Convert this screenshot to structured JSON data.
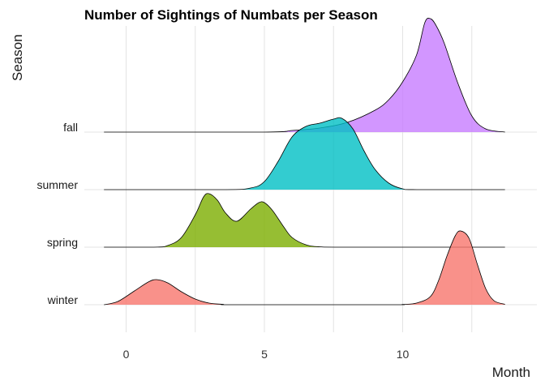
{
  "chart_data": {
    "type": "ridgeline",
    "title": "Number of Sightings of Numbats per Season",
    "xlabel": "Month",
    "ylabel": "Season",
    "xlim": [
      -1.5,
      14.5
    ],
    "xticks": [
      0,
      5,
      10
    ],
    "grid": true,
    "categories": [
      "winter",
      "spring",
      "summer",
      "fall"
    ],
    "series": [
      {
        "name": "winter",
        "color": "#F8766D",
        "x": [
          -0.8,
          -0.3,
          0.3,
          0.8,
          1.1,
          1.5,
          2.0,
          2.5,
          3.0,
          3.5,
          4.0,
          9.5,
          10.0,
          10.5,
          11.0,
          11.3,
          11.6,
          11.9,
          12.1,
          12.4,
          12.7,
          13.0,
          13.3,
          13.7
        ],
        "y": [
          0.0,
          0.04,
          0.17,
          0.28,
          0.31,
          0.27,
          0.16,
          0.07,
          0.02,
          0.005,
          0.0,
          0.0,
          0.003,
          0.02,
          0.1,
          0.3,
          0.6,
          0.85,
          0.91,
          0.82,
          0.5,
          0.2,
          0.05,
          0.005
        ]
      },
      {
        "name": "spring",
        "color": "#7CAE00",
        "x": [
          -0.8,
          1.0,
          1.5,
          2.0,
          2.5,
          2.8,
          3.0,
          3.3,
          3.6,
          4.0,
          4.5,
          4.8,
          5.0,
          5.3,
          5.7,
          6.0,
          6.5,
          7.0,
          8.0,
          13.7
        ],
        "y": [
          0.0,
          0.0,
          0.02,
          0.12,
          0.4,
          0.62,
          0.66,
          0.58,
          0.42,
          0.32,
          0.47,
          0.55,
          0.55,
          0.45,
          0.25,
          0.12,
          0.03,
          0.005,
          0.0,
          0.0
        ]
      },
      {
        "name": "summer",
        "color": "#00BFC4",
        "x": [
          -0.8,
          3.5,
          4.5,
          5.0,
          5.5,
          6.0,
          6.5,
          7.0,
          7.5,
          7.8,
          8.2,
          8.6,
          9.0,
          9.5,
          10.0,
          10.5,
          13.7
        ],
        "y": [
          0.0,
          0.0,
          0.02,
          0.1,
          0.35,
          0.65,
          0.78,
          0.82,
          0.87,
          0.88,
          0.75,
          0.48,
          0.25,
          0.08,
          0.01,
          0.0,
          0.0
        ]
      },
      {
        "name": "fall",
        "color": "#C77CFF",
        "x": [
          -0.8,
          5.0,
          6.0,
          7.0,
          8.0,
          9.0,
          9.5,
          10.0,
          10.5,
          10.8,
          11.0,
          11.2,
          11.5,
          12.0,
          12.5,
          13.0,
          13.7
        ],
        "y": [
          0.0,
          0.0,
          0.02,
          0.05,
          0.12,
          0.27,
          0.4,
          0.62,
          0.95,
          1.35,
          1.4,
          1.32,
          1.1,
          0.6,
          0.2,
          0.04,
          0.0
        ]
      }
    ]
  }
}
